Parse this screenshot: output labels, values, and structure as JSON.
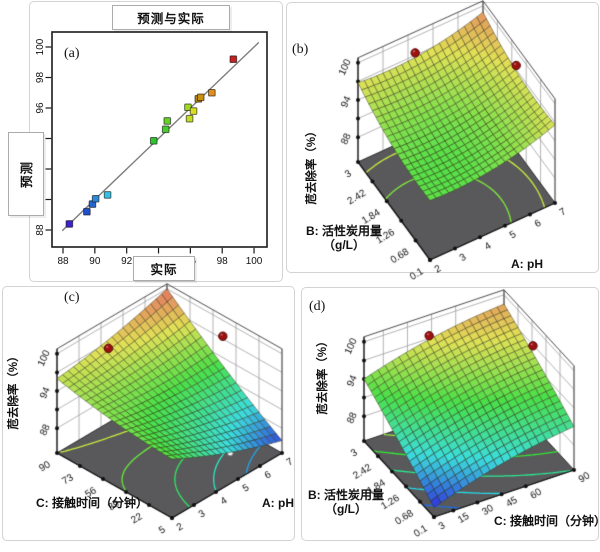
{
  "panel_labels": {
    "a": "(a)",
    "b": "(b)",
    "c": "(c)",
    "d": "(d)"
  },
  "chart_data": [
    {
      "id": "a",
      "type": "scatter",
      "title": "预测与实际",
      "xlabel": "实际",
      "ylabel": "预测",
      "axis_range": [
        87.3,
        100.8
      ],
      "ticks": [
        88,
        90,
        92,
        94,
        96,
        98,
        100
      ],
      "identity_line": true,
      "points": [
        {
          "actual": 88.4,
          "predicted": 88.4,
          "color": "#3a23cb"
        },
        {
          "actual": 89.5,
          "predicted": 89.2,
          "color": "#2150cf"
        },
        {
          "actual": 89.85,
          "predicted": 89.7,
          "color": "#2565d2"
        },
        {
          "actual": 90.05,
          "predicted": 90.05,
          "color": "#2b88dc"
        },
        {
          "actual": 90.8,
          "predicted": 90.3,
          "color": "#38c0e4"
        },
        {
          "actual": 93.7,
          "predicted": 93.85,
          "color": "#2fc42f"
        },
        {
          "actual": 94.45,
          "predicted": 94.6,
          "color": "#49ca30"
        },
        {
          "actual": 94.55,
          "predicted": 95.15,
          "color": "#66cf28"
        },
        {
          "actual": 95.85,
          "predicted": 96.05,
          "color": "#a2d926"
        },
        {
          "actual": 95.95,
          "predicted": 95.3,
          "color": "#c6dc22"
        },
        {
          "actual": 96.2,
          "predicted": 95.8,
          "color": "#dadf21"
        },
        {
          "actual": 96.5,
          "predicted": 96.6,
          "color": "#b8860b"
        },
        {
          "actual": 96.65,
          "predicted": 96.7,
          "color": "#c99012"
        },
        {
          "actual": 97.35,
          "predicted": 97.0,
          "color": "#e08e1e"
        },
        {
          "actual": 98.7,
          "predicted": 99.2,
          "color": "#c42121"
        }
      ]
    },
    {
      "id": "b",
      "type": "surface3d",
      "zlabel": "苊去除率（%）",
      "x_axis": {
        "label": "A: pH",
        "min": 2,
        "max": 7,
        "ticks": [
          "2",
          "3",
          "4",
          "5",
          "6",
          "7"
        ]
      },
      "y_axis": {
        "label": "B: 活性炭用量（g/L）",
        "label_line1": "B: 活性炭用量",
        "label_line2": "（g/L）",
        "min": 0.1,
        "max": 3,
        "ticks": [
          "3",
          "2.42",
          "1.84",
          "1.26",
          "0.68",
          "0.1"
        ]
      },
      "z_axis": {
        "tick_labels": [
          "88",
          "94",
          "100"
        ],
        "tick_values": [
          88,
          94,
          100
        ],
        "grid_values": [
          88,
          91,
          94,
          97,
          100
        ]
      },
      "surface_coeffs_uv": [
        93.6,
        -1.6,
        -1.4,
        4.6,
        4.6,
        -0.8
      ],
      "colormap_range": [
        85.5,
        100.5
      ],
      "contour_levels": [
        93,
        94.5,
        96,
        97.5
      ],
      "design_points": [
        {
          "x": 4.0,
          "y": 2.71,
          "z": 99.5
        },
        {
          "x": 6.75,
          "y": 1.41,
          "z": 99.5
        }
      ],
      "floor_point": {
        "x": 6.05,
        "y": 1.55
      }
    },
    {
      "id": "c",
      "type": "surface3d",
      "zlabel": "苊去除率（%）",
      "x_axis": {
        "label": "A: pH",
        "min": 2,
        "max": 7,
        "ticks": [
          "2",
          "3",
          "4",
          "5",
          "6",
          "7"
        ]
      },
      "y_axis": {
        "label": "C: 接触时间（分钟）",
        "min": 5,
        "max": 90,
        "ticks": [
          "90",
          "73",
          "56",
          "39",
          "22",
          "5"
        ]
      },
      "z_axis": {
        "tick_labels": [
          "88",
          "94",
          "100"
        ],
        "tick_values": [
          88,
          94,
          100
        ],
        "grid_values": [
          88,
          91,
          94,
          97,
          100
        ]
      },
      "surface_coeffs_uv": [
        93.5,
        -9.5,
        0.5,
        2.0,
        2.0,
        11.5
      ],
      "colormap_range": [
        85.5,
        100.5
      ],
      "contour_levels": [
        88,
        90,
        92,
        94,
        96,
        98
      ],
      "design_points": [
        {
          "x": 3.6,
          "y": 78,
          "z": 99.0
        },
        {
          "x": 6.4,
          "y": 39,
          "z": 99.9
        }
      ],
      "floor_point": {
        "x": 5.85,
        "y": 24.5
      }
    },
    {
      "id": "d",
      "type": "surface3d",
      "zlabel": "苊去除率（%）",
      "x_axis": {
        "label": "C: 接触时间（分钟）",
        "min": 3,
        "max": 90,
        "ticks": [
          "3",
          "15",
          "30",
          "45",
          "60",
          "90"
        ]
      },
      "y_axis": {
        "label": "B: 活性炭用量（g/L）",
        "label_line1": "B: 活性炭用量",
        "label_line2": "（g/L）",
        "min": 0.1,
        "max": 3,
        "ticks": [
          "3",
          "2.42",
          "1.84",
          "1.26",
          "0.68",
          "0.1"
        ]
      },
      "z_axis": {
        "tick_labels": [
          "88",
          "94",
          "100"
        ],
        "tick_values": [
          88,
          94,
          100
        ],
        "grid_values": [
          88,
          91,
          94,
          97,
          100
        ]
      },
      "surface_coeffs_uv": [
        85.5,
        8.5,
        9.5,
        -3.0,
        -1.0,
        -1.0
      ],
      "colormap_range": [
        85.5,
        100.5
      ],
      "contour_levels": [
        87,
        89,
        91,
        93,
        95,
        97
      ],
      "design_points": [
        {
          "x": 42,
          "y": 2.9,
          "z": 98.0
        },
        {
          "x": 85.5,
          "y": 1.5,
          "z": 98.5
        }
      ],
      "floor_point": {
        "x": 64,
        "y": 1.17
      }
    }
  ]
}
